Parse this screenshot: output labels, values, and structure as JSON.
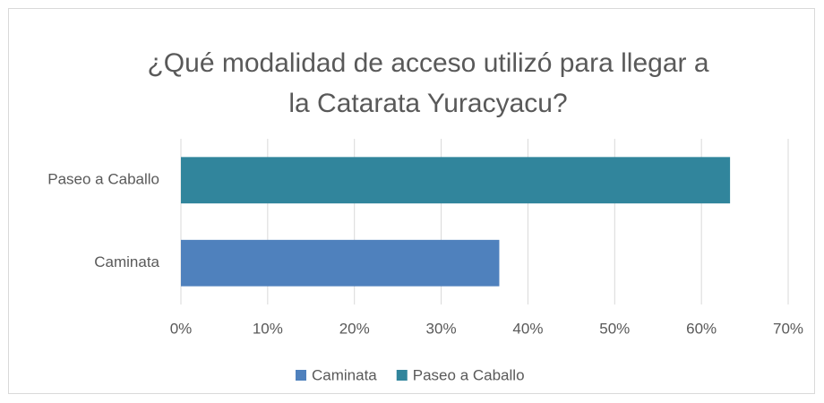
{
  "chart_data": {
    "type": "hbar",
    "title": [
      "¿Qué modalidad de acceso utilizó para llegar a",
      "la Catarata Yuracyacu?"
    ],
    "categories": [
      "Caminata",
      "Paseo a Caballo"
    ],
    "values": [
      36.7,
      63.3
    ],
    "colors": [
      "#4f81bd",
      "#31859c"
    ],
    "xlim": [
      0,
      70
    ],
    "xticks": [
      {
        "value": 0,
        "label": "0%"
      },
      {
        "value": 10,
        "label": "10%"
      },
      {
        "value": 20,
        "label": "20%"
      },
      {
        "value": 30,
        "label": "30%"
      },
      {
        "value": 40,
        "label": "40%"
      },
      {
        "value": 50,
        "label": "50%"
      },
      {
        "value": 60,
        "label": "60%"
      },
      {
        "value": 70,
        "label": "70%"
      }
    ],
    "grid": true,
    "legend": "bottom"
  }
}
